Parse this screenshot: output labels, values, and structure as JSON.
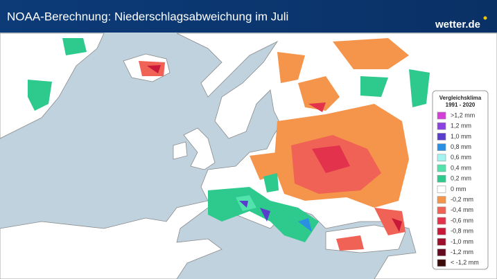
{
  "header": {
    "title": "NOAA-Berechnung: Niederschlagsabweichung im Juli",
    "logo": "wetter.de"
  },
  "legend": {
    "title": "Vergleichsklima",
    "subtitle": "1991 - 2020",
    "items": [
      {
        "label": ">1,2 mm",
        "color": "#d43fd8"
      },
      {
        "label": "1,2 mm",
        "color": "#8c42e0"
      },
      {
        "label": "1,0 mm",
        "color": "#5a3dcc"
      },
      {
        "label": "0,8 mm",
        "color": "#2b8fe3"
      },
      {
        "label": "0,6 mm",
        "color": "#a3f3f0"
      },
      {
        "label": "0,4 mm",
        "color": "#52e3ad"
      },
      {
        "label": "0,2 mm",
        "color": "#2ec98c"
      },
      {
        "label": "0 mm",
        "color": "#ffffff"
      },
      {
        "label": "-0,2 mm",
        "color": "#f5944b"
      },
      {
        "label": "-0,4 mm",
        "color": "#f06156"
      },
      {
        "label": "-0,6 mm",
        "color": "#e2324c"
      },
      {
        "label": "-0,8 mm",
        "color": "#c9193a"
      },
      {
        "label": "-1,0 mm",
        "color": "#9e0f2c"
      },
      {
        "label": "-1,2 mm",
        "color": "#660a22"
      },
      {
        "label": "< -1,2 mm",
        "color": "#3a0b08"
      }
    ]
  }
}
